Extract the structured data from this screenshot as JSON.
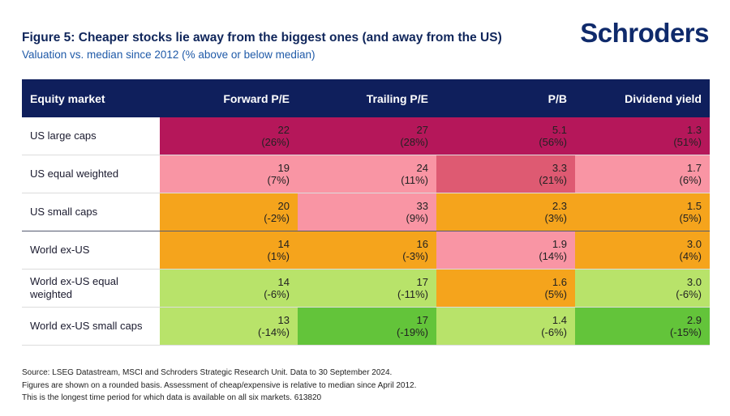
{
  "header": {
    "title": "Figure 5: Cheaper stocks lie away from the biggest ones (and away from the US)",
    "subtitle": "Valuation vs. median since 2012 (% above or below median)"
  },
  "logo": {
    "text": "Schroders"
  },
  "colors": {
    "header_bg": "#0f1f5c",
    "magenta": "#b5175a",
    "pink": "#f995a4",
    "rose_dark": "#de5a72",
    "orange": "#f5a41c",
    "light_green": "#b8e36a",
    "green": "#63c43a",
    "white": "#ffffff"
  },
  "chart_data": {
    "type": "table",
    "title": "Figure 5: Cheaper stocks lie away from the biggest ones (and away from the US)",
    "subtitle": "Valuation vs. median since 2012 (% above or below median)",
    "columns": [
      "Equity market",
      "Forward P/E",
      "Trailing P/E",
      "P/B",
      "Dividend yield"
    ],
    "rows": [
      {
        "market": "US large caps",
        "separator": false,
        "cells": [
          {
            "value": "22",
            "pct": "(26%)",
            "color": "magenta"
          },
          {
            "value": "27",
            "pct": "(28%)",
            "color": "magenta"
          },
          {
            "value": "5.1",
            "pct": "(56%)",
            "color": "magenta"
          },
          {
            "value": "1.3",
            "pct": "(51%)",
            "color": "magenta"
          }
        ]
      },
      {
        "market": "US equal weighted",
        "separator": false,
        "cells": [
          {
            "value": "19",
            "pct": "(7%)",
            "color": "pink"
          },
          {
            "value": "24",
            "pct": "(11%)",
            "color": "pink"
          },
          {
            "value": "3.3",
            "pct": "(21%)",
            "color": "rose_dark"
          },
          {
            "value": "1.7",
            "pct": "(6%)",
            "color": "pink"
          }
        ]
      },
      {
        "market": "US small caps",
        "separator": true,
        "cells": [
          {
            "value": "20",
            "pct": "(-2%)",
            "color": "orange"
          },
          {
            "value": "33",
            "pct": "(9%)",
            "color": "pink"
          },
          {
            "value": "2.3",
            "pct": "(3%)",
            "color": "orange"
          },
          {
            "value": "1.5",
            "pct": "(5%)",
            "color": "orange"
          }
        ]
      },
      {
        "market": "World ex-US",
        "separator": false,
        "cells": [
          {
            "value": "14",
            "pct": "(1%)",
            "color": "orange"
          },
          {
            "value": "16",
            "pct": "(-3%)",
            "color": "orange"
          },
          {
            "value": "1.9",
            "pct": "(14%)",
            "color": "pink"
          },
          {
            "value": "3.0",
            "pct": "(4%)",
            "color": "orange"
          }
        ]
      },
      {
        "market": "World ex-US equal weighted",
        "separator": false,
        "cells": [
          {
            "value": "14",
            "pct": "(-6%)",
            "color": "light_green"
          },
          {
            "value": "17",
            "pct": "(-11%)",
            "color": "light_green"
          },
          {
            "value": "1.6",
            "pct": "(5%)",
            "color": "orange"
          },
          {
            "value": "3.0",
            "pct": "(-6%)",
            "color": "light_green"
          }
        ]
      },
      {
        "market": "World ex-US small caps",
        "separator": false,
        "cells": [
          {
            "value": "13",
            "pct": "(-14%)",
            "color": "light_green"
          },
          {
            "value": "17",
            "pct": "(-19%)",
            "color": "green"
          },
          {
            "value": "1.4",
            "pct": "(-6%)",
            "color": "light_green"
          },
          {
            "value": "2.9",
            "pct": "(-15%)",
            "color": "green"
          }
        ]
      }
    ]
  },
  "notes": [
    "Source: LSEG Datastream, MSCI and Schroders Strategic Research Unit. Data to 30 September 2024.",
    "Figures are shown on a rounded basis. Assessment of cheap/expensive is relative to median since April 2012.",
    "This is the longest time period for which data is available on all six markets. 613820"
  ]
}
